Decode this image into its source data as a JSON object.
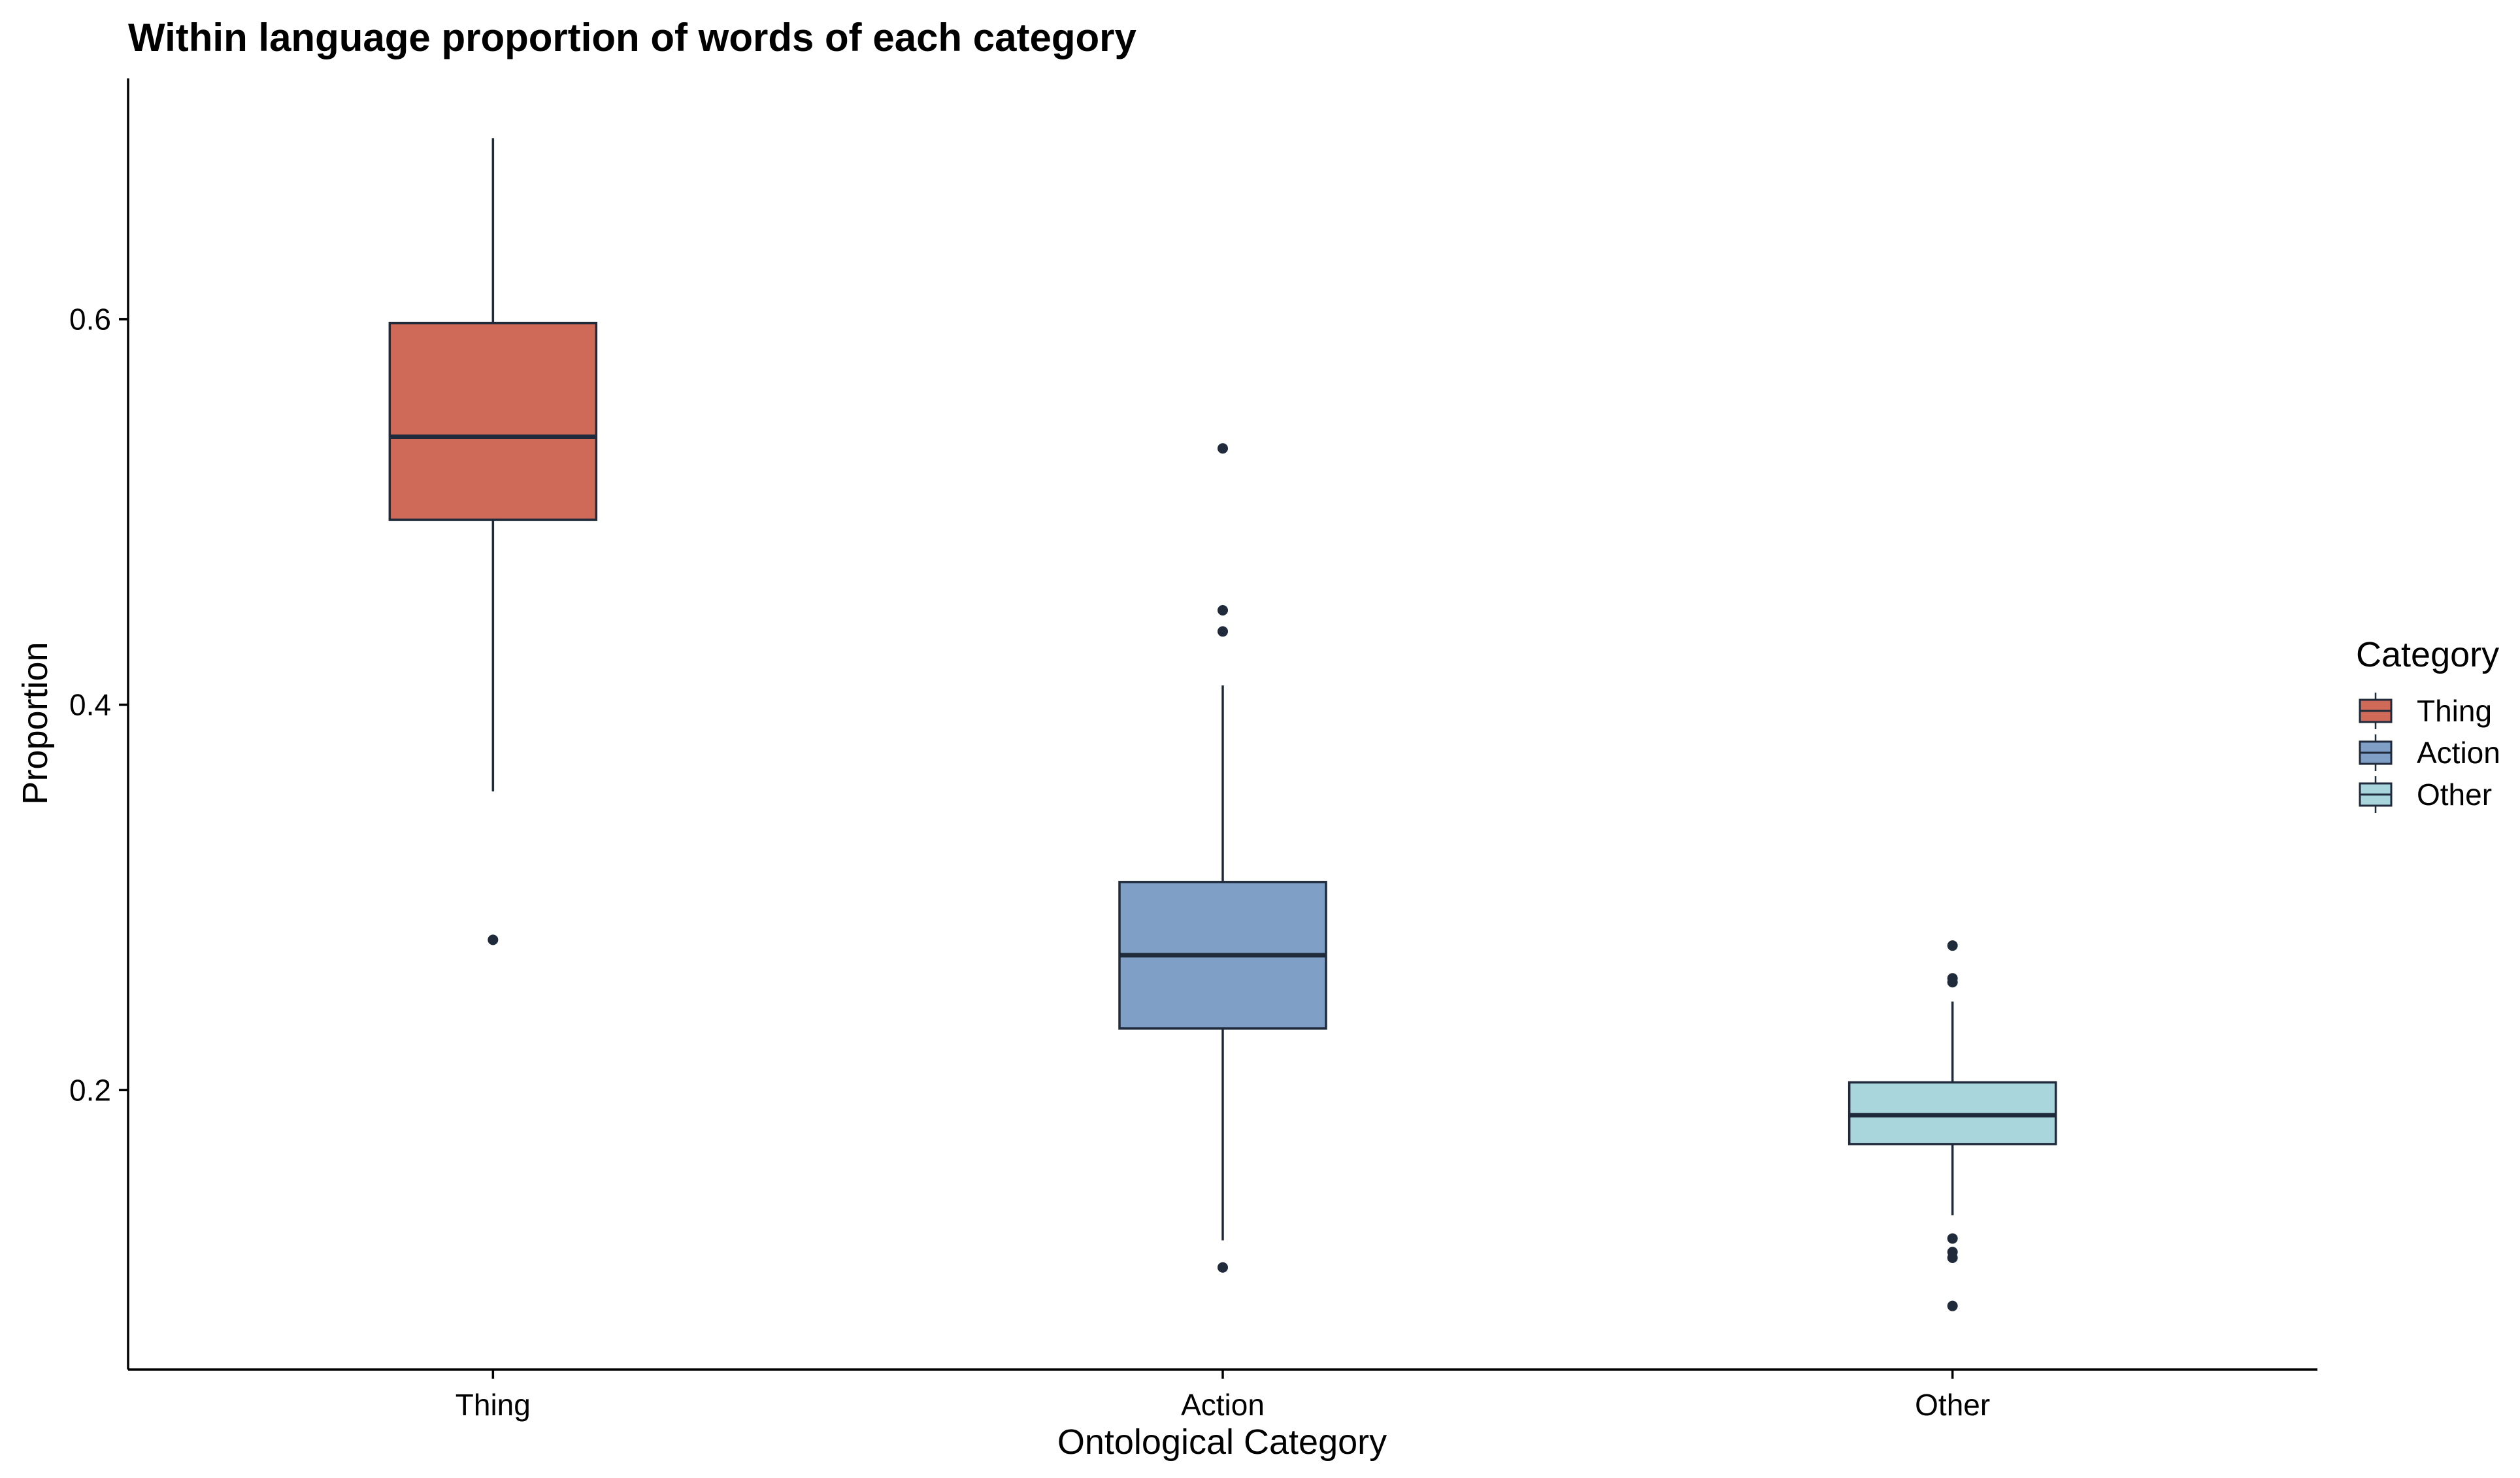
{
  "chart_data": {
    "type": "boxplot",
    "title": "Within language proportion of words of each category",
    "xlabel": "Ontological Category",
    "ylabel": "Proportion",
    "ylim": [
      0.055,
      0.725
    ],
    "yticks": [
      0.2,
      0.4,
      0.6
    ],
    "ytick_labels": [
      "0.2",
      "0.4",
      "0.6"
    ],
    "categories": [
      "Thing",
      "Action",
      "Other"
    ],
    "grid": false,
    "legend": {
      "title": "Category",
      "position": "right",
      "entries": [
        "Thing",
        "Action",
        "Other"
      ]
    },
    "colors": {
      "Thing": "#D06A58",
      "Action": "#7F9FC6",
      "Other": "#A9D5DC",
      "outline": "#1F2A3A"
    },
    "series": [
      {
        "category": "Thing",
        "q1": 0.496,
        "median": 0.539,
        "q3": 0.598,
        "whisker_low": 0.355,
        "whisker_high": 0.694,
        "outliers": [
          0.278
        ]
      },
      {
        "category": "Action",
        "q1": 0.232,
        "median": 0.27,
        "q3": 0.308,
        "whisker_low": 0.122,
        "whisker_high": 0.41,
        "outliers": [
          0.533,
          0.449,
          0.438,
          0.108
        ]
      },
      {
        "category": "Other",
        "q1": 0.172,
        "median": 0.187,
        "q3": 0.204,
        "whisker_low": 0.135,
        "whisker_high": 0.246,
        "outliers": [
          0.275,
          0.258,
          0.256,
          0.123,
          0.116,
          0.113,
          0.088
        ]
      }
    ]
  }
}
